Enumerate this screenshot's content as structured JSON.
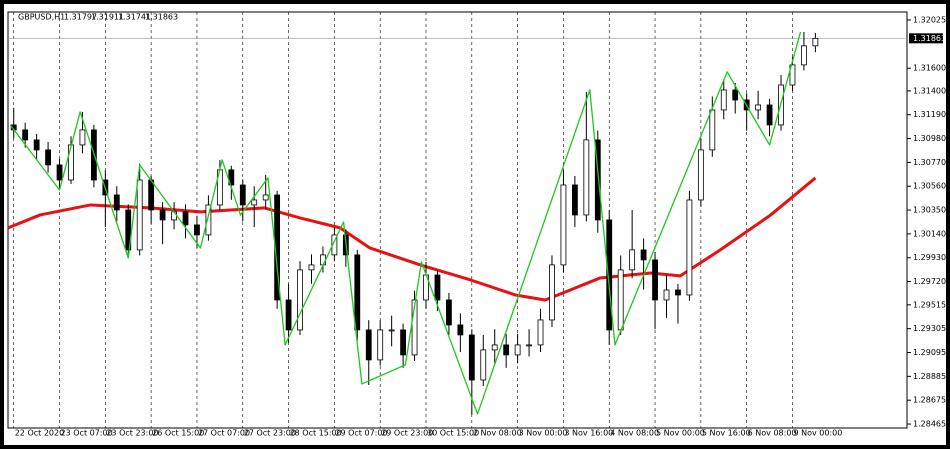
{
  "chart_data": {
    "type": "candlestick",
    "title": "GBPUSD,H1",
    "ohlc_label": [
      1.31797,
      1.31911,
      1.31741,
      1.31863
    ],
    "last_price": 1.31863,
    "bull_color": "#ffffff",
    "bear_color": "#000000",
    "outline_color": "#000000",
    "open": [
      1.311,
      1.31056,
      1.30968,
      1.3088,
      1.30748,
      1.30615,
      1.30924,
      1.31056,
      1.30615,
      1.30483,
      1.30351,
      1.29999,
      1.30615,
      1.30351,
      1.30263,
      1.30334,
      1.30219,
      1.30131,
      1.30395,
      1.30704,
      1.30571,
      1.30395,
      1.30439,
      1.30483,
      1.29558,
      1.29294,
      1.29823,
      1.29867,
      1.29955,
      1.30131,
      1.29955,
      1.29294,
      1.2903,
      1.29294,
      1.29294,
      1.29074,
      1.29558,
      1.29778,
      1.29558,
      1.29338,
      1.2925,
      1.28853,
      1.29118,
      1.29162,
      1.29074,
      1.29162,
      1.29162,
      1.29382,
      1.29867,
      1.30571,
      1.30307,
      1.30968,
      1.30263,
      1.29294,
      1.29823,
      1.29999,
      1.29911,
      1.29558,
      1.29646,
      1.29602,
      1.30439,
      1.3088,
      1.31232,
      1.31408,
      1.3132,
      1.31232,
      1.31276,
      1.311,
      1.31452,
      1.31629,
      1.31797
    ],
    "high": [
      1.3125,
      1.3112,
      1.3102,
      1.3095,
      1.308,
      1.31,
      1.31215,
      1.311,
      1.307,
      1.3056,
      1.304,
      1.3076,
      1.3065,
      1.3042,
      1.3042,
      1.304,
      1.303,
      1.3048,
      1.3079,
      1.3074,
      1.3062,
      1.3056,
      1.3066,
      1.3052,
      1.297,
      1.299,
      1.2996,
      1.3003,
      1.302,
      1.3018,
      1.3,
      1.2938,
      1.2938,
      1.2942,
      1.2935,
      1.2964,
      1.29893,
      1.2982,
      1.2962,
      1.2944,
      1.293,
      1.2925,
      1.293,
      1.2926,
      1.2926,
      1.293,
      1.2948,
      1.2995,
      1.307,
      1.3065,
      1.3139,
      1.3105,
      1.3035,
      1.2995,
      1.3035,
      1.301,
      1.2998,
      1.2978,
      1.297,
      1.3052,
      1.3098,
      1.3135,
      1.315,
      1.3147,
      1.3138,
      1.314,
      1.3133,
      1.3154,
      1.317,
      1.31919,
      1.31911
    ],
    "low": [
      1.3098,
      1.309,
      1.3079,
      1.3068,
      1.3054,
      1.3058,
      1.3085,
      1.3055,
      1.302,
      1.3025,
      1.2993,
      1.2995,
      1.3023,
      1.3005,
      1.3018,
      1.301,
      1.3002,
      1.3008,
      1.3035,
      1.3044,
      1.3025,
      1.302,
      1.3036,
      1.2948,
      1.2918,
      1.2925,
      1.297,
      1.298,
      1.299,
      1.2985,
      1.292,
      1.28809,
      1.2898,
      1.2915,
      1.2896,
      1.2902,
      1.2948,
      1.2946,
      1.2925,
      1.291,
      1.28545,
      1.288,
      1.29,
      1.2896,
      1.29,
      1.2906,
      1.291,
      1.2932,
      1.298,
      1.302,
      1.3025,
      1.3015,
      1.29162,
      1.2925,
      1.2975,
      1.2965,
      1.293,
      1.294,
      1.2935,
      1.2955,
      1.3038,
      1.3082,
      1.3115,
      1.312,
      1.3105,
      1.3115,
      1.31,
      1.3105,
      1.314,
      1.3158,
      1.31741
    ],
    "close": [
      1.31056,
      1.30968,
      1.3088,
      1.30748,
      1.30615,
      1.30924,
      1.31056,
      1.30615,
      1.30483,
      1.30351,
      1.29999,
      1.30615,
      1.30351,
      1.30263,
      1.30334,
      1.30219,
      1.30131,
      1.30395,
      1.30704,
      1.30571,
      1.30395,
      1.30439,
      1.30483,
      1.29558,
      1.29294,
      1.29823,
      1.29867,
      1.29955,
      1.30131,
      1.29955,
      1.29294,
      1.2903,
      1.29294,
      1.29294,
      1.29074,
      1.29558,
      1.29778,
      1.29558,
      1.29338,
      1.2925,
      1.28853,
      1.29118,
      1.29162,
      1.29074,
      1.29162,
      1.29162,
      1.29382,
      1.29867,
      1.30571,
      1.30307,
      1.30968,
      1.30263,
      1.29294,
      1.29823,
      1.29999,
      1.29911,
      1.29558,
      1.29646,
      1.29602,
      1.30439,
      1.3088,
      1.31232,
      1.31408,
      1.3132,
      1.31232,
      1.31276,
      1.311,
      1.31452,
      1.31629,
      1.31797,
      1.31863
    ],
    "zigzag": {
      "color": "#1ec81e",
      "x": [
        -0.3,
        4,
        5.8,
        10,
        11,
        16.3,
        18.2,
        19.8,
        22.2,
        23.7,
        28.8,
        30.4,
        34.2,
        35.6,
        40.5,
        50.3,
        52.5,
        62.3,
        66,
        68.7
      ],
      "values": [
        1.311,
        1.30527,
        1.31215,
        1.29928,
        1.30748,
        1.30016,
        1.30792,
        1.30307,
        1.30633,
        1.29162,
        1.30245,
        1.28818,
        1.28986,
        1.29893,
        1.28554,
        1.31408,
        1.29162,
        1.31567,
        1.30924,
        1.31919
      ]
    },
    "moving_average": {
      "color": "#e81010",
      "x": [
        -0.5,
        2.3,
        6.7,
        11.9,
        16.3,
        21.9,
        25,
        28.5,
        31.1,
        35.5,
        39.9,
        43.8,
        46.4,
        48.6,
        51.2,
        55.6,
        58.2,
        61.7,
        66.1,
        70
      ],
      "values": [
        1.30193,
        1.30307,
        1.30395,
        1.30369,
        1.30334,
        1.30369,
        1.30281,
        1.30193,
        1.30016,
        1.29867,
        1.29734,
        1.29602,
        1.29558,
        1.29646,
        1.29752,
        1.29796,
        1.2977,
        1.29999,
        1.30307,
        1.30633
      ]
    },
    "xlim": [
      -0.5,
      78
    ],
    "ylim": [
      1.2843,
      1.32095
    ],
    "xticks": [
      {
        "value": 0,
        "label": "22 Oct 2020"
      },
      {
        "value": 4,
        "label": "23 Oct 07:00"
      },
      {
        "value": 8,
        "label": "23 Oct 23:00"
      },
      {
        "value": 12,
        "label": "26 Oct 15:00"
      },
      {
        "value": 16,
        "label": "27 Oct 07:00"
      },
      {
        "value": 20,
        "label": "27 Oct 23:00"
      },
      {
        "value": 24,
        "label": "28 Oct 15:00"
      },
      {
        "value": 28,
        "label": "29 Oct 07:00"
      },
      {
        "value": 32,
        "label": "29 Oct 23:00"
      },
      {
        "value": 36,
        "label": "30 Oct 15:00"
      },
      {
        "value": 40,
        "label": "2 Nov 08:00"
      },
      {
        "value": 44,
        "label": "3 Nov 00:00"
      },
      {
        "value": 48,
        "label": "3 Nov 16:00"
      },
      {
        "value": 52,
        "label": "4 Nov 08:00"
      },
      {
        "value": 56,
        "label": "5 Nov 00:00"
      },
      {
        "value": 60,
        "label": "5 Nov 16:00"
      },
      {
        "value": 64,
        "label": "6 Nov 08:00"
      },
      {
        "value": 68,
        "label": "9 Nov 00:00"
      }
    ],
    "yticks": [
      1.32025,
      {
        "value": 1.316,
        "label": "1.31600"
      },
      {
        "value": 1.314,
        "label": "1.31400"
      },
      {
        "value": 1.3119,
        "label": "1.31190"
      },
      {
        "value": 1.3098,
        "label": "1.30980"
      },
      {
        "value": 1.3077,
        "label": "1.30770"
      },
      {
        "value": 1.3056,
        "label": "1.30560"
      },
      {
        "value": 1.3035,
        "label": "1.30350"
      },
      {
        "value": 1.3014,
        "label": "1.30140"
      },
      {
        "value": 1.2993,
        "label": "1.29930"
      },
      {
        "value": 1.2972,
        "label": "1.29720"
      },
      1.29515,
      1.29305,
      1.29095,
      1.28885,
      1.28675,
      1.28465
    ],
    "grid": true
  }
}
